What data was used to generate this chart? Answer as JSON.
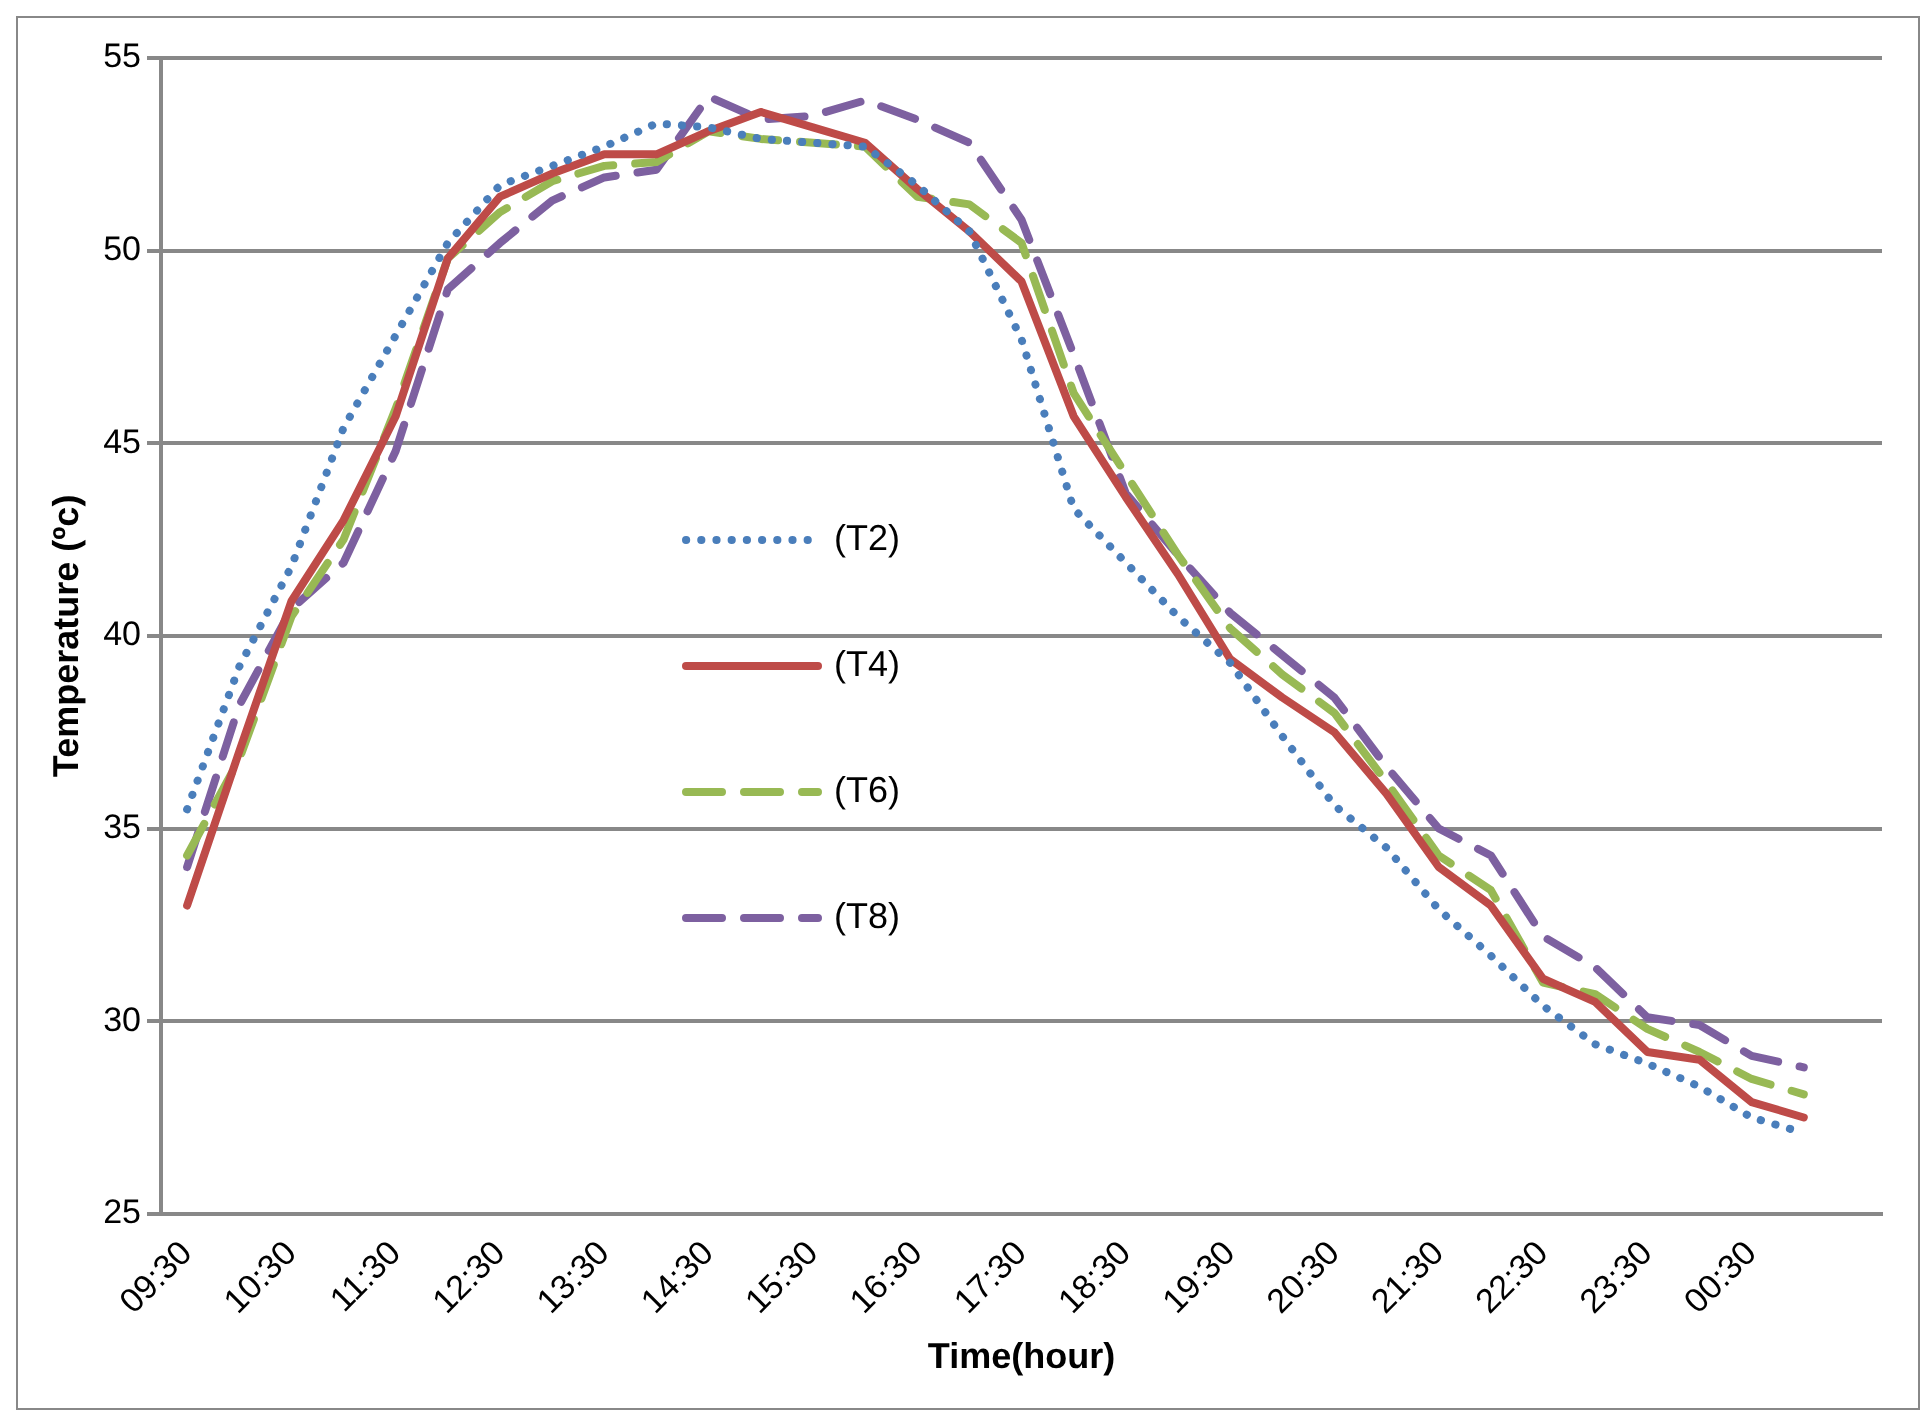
{
  "chart_data": {
    "type": "line",
    "xlabel": "Time(hour)",
    "ylabel": "Temperature (ºc)",
    "categories": [
      "09:30",
      null,
      "10:30",
      null,
      "11:30",
      null,
      "12:30",
      null,
      "13:30",
      null,
      "14:30",
      null,
      "15:30",
      null,
      "16:30",
      null,
      "17:30",
      null,
      "18:30",
      null,
      "19:30",
      null,
      "20:30",
      null,
      "21:30",
      null,
      "22:30",
      null,
      "23:30",
      null,
      "00:30",
      null,
      null
    ],
    "series": [
      {
        "name": "(T2)",
        "color": "#4a7ebb",
        "line_style": "dotted",
        "values": [
          35.5,
          39.2,
          41.8,
          45.4,
          47.8,
          50.2,
          51.7,
          52.2,
          52.7,
          53.3,
          53.2,
          52.9,
          52.8,
          52.7,
          51.7,
          50.5,
          47.7,
          43.3,
          41.9,
          40.5,
          39.3,
          37.4,
          35.6,
          34.5,
          32.9,
          31.7,
          30.4,
          29.4,
          28.9,
          28.3,
          27.5,
          27.1,
          null
        ]
      },
      {
        "name": "(T4)",
        "color": "#be4b48",
        "line_style": "solid",
        "values": [
          33.0,
          37.0,
          40.9,
          43.0,
          45.7,
          49.8,
          51.4,
          52.0,
          52.5,
          52.5,
          53.1,
          53.6,
          53.2,
          52.8,
          51.6,
          50.5,
          49.2,
          45.7,
          43.6,
          41.6,
          39.4,
          38.4,
          37.5,
          35.9,
          34.0,
          33.0,
          31.1,
          30.5,
          29.2,
          29.0,
          27.9,
          27.5,
          null
        ]
      },
      {
        "name": "(T6)",
        "color": "#98b954",
        "line_style": "dashed",
        "values": [
          34.3,
          36.8,
          40.5,
          42.5,
          45.9,
          49.8,
          51.0,
          51.8,
          52.2,
          52.3,
          53.1,
          52.9,
          52.8,
          52.7,
          51.4,
          51.2,
          50.2,
          46.3,
          44.2,
          42.1,
          40.2,
          39.0,
          38.0,
          36.2,
          34.3,
          33.4,
          31.0,
          30.7,
          29.8,
          29.2,
          28.5,
          28.1,
          null
        ]
      },
      {
        "name": "(T8)",
        "color": "#7d60a0",
        "line_style": "dashed",
        "values": [
          34.0,
          38.2,
          40.7,
          41.9,
          44.8,
          49.0,
          50.2,
          51.3,
          51.9,
          52.1,
          54.0,
          53.4,
          53.5,
          53.9,
          53.4,
          52.8,
          50.8,
          47.3,
          43.7,
          42.1,
          40.6,
          39.5,
          38.4,
          36.6,
          35.0,
          34.3,
          32.2,
          31.4,
          30.1,
          29.9,
          29.1,
          28.8,
          null
        ]
      }
    ],
    "ylim": [
      25,
      55
    ],
    "yticks": [
      25,
      30,
      35,
      40,
      45,
      50,
      55
    ],
    "grid": "y",
    "legend": "center",
    "marker": "none"
  }
}
